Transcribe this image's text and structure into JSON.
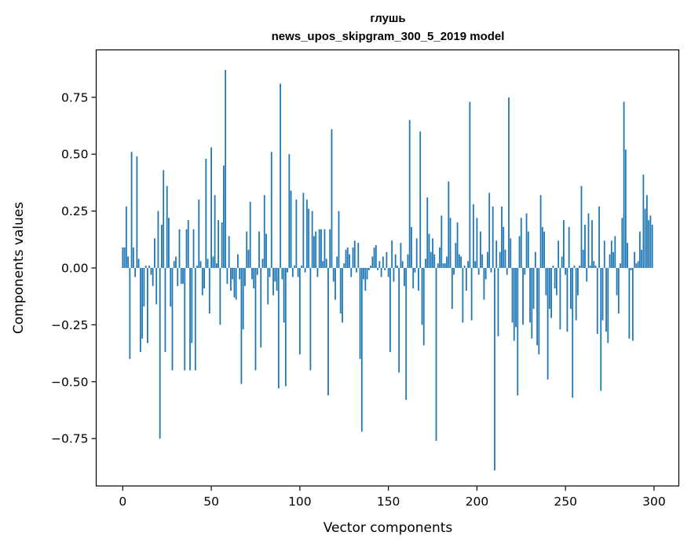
{
  "chart_data": {
    "type": "bar",
    "title": "глушь",
    "subtitle": "news_upos_skipgram_300_5_2019 model",
    "xlabel": "Vector components",
    "ylabel": "Components values",
    "xlim": [
      -15,
      314
    ],
    "ylim": [
      -0.9583,
      0.9583
    ],
    "xticks": [
      0,
      50,
      100,
      150,
      200,
      250,
      300
    ],
    "xtick_labels": [
      "0",
      "50",
      "100",
      "150",
      "200",
      "250",
      "300"
    ],
    "yticks": [
      -0.75,
      -0.5,
      -0.25,
      0.0,
      0.25,
      0.5,
      0.75
    ],
    "ytick_labels": [
      "−0.75",
      "−0.50",
      "−0.25",
      "0.00",
      "0.25",
      "0.50",
      "0.75"
    ],
    "grid": false,
    "bar_color": "#1f77b4",
    "values": [
      0.09,
      0.09,
      0.27,
      0.05,
      -0.4,
      0.51,
      0.09,
      -0.04,
      0.49,
      0.04,
      -0.37,
      -0.31,
      -0.17,
      0.01,
      -0.33,
      0.01,
      -0.03,
      -0.08,
      0.13,
      -0.16,
      0.25,
      -0.75,
      0.19,
      0.43,
      -0.37,
      0.36,
      0.22,
      -0.17,
      -0.45,
      0.03,
      0.05,
      -0.08,
      0.17,
      -0.07,
      -0.07,
      -0.45,
      0.17,
      0.21,
      -0.45,
      -0.33,
      0.17,
      -0.45,
      0.01,
      0.3,
      0.03,
      -0.12,
      -0.09,
      0.48,
      0.04,
      -0.2,
      0.53,
      0.05,
      0.32,
      0.02,
      0.21,
      -0.25,
      0.2,
      0.45,
      0.87,
      -0.07,
      0.14,
      -0.1,
      -0.05,
      -0.13,
      -0.14,
      0.06,
      -0.05,
      -0.51,
      -0.27,
      -0.08,
      0.16,
      0.08,
      0.29,
      -0.05,
      -0.09,
      -0.45,
      -0.03,
      0.16,
      -0.35,
      0.04,
      0.32,
      0.15,
      -0.16,
      -0.04,
      0.51,
      -0.12,
      -0.06,
      -0.1,
      -0.53,
      0.81,
      -0.05,
      -0.24,
      -0.52,
      -0.02,
      0.5,
      0.34,
      -0.04,
      0.01,
      0.3,
      -0.04,
      -0.38,
      0.01,
      0.33,
      -0.02,
      0.3,
      0.26,
      -0.45,
      0.25,
      0.14,
      0.16,
      -0.04,
      0.17,
      0.17,
      0.03,
      0.17,
      0.04,
      -0.56,
      0.17,
      0.61,
      -0.06,
      -0.14,
      0.05,
      0.25,
      -0.2,
      -0.24,
      0.02,
      0.08,
      0.09,
      0.06,
      -0.04,
      0.09,
      0.12,
      -0.02,
      0.11,
      -0.4,
      -0.72,
      -0.05,
      -0.1,
      -0.05,
      -0.01,
      0.01,
      0.05,
      0.09,
      0.1,
      -0.01,
      0.03,
      -0.04,
      0.05,
      -0.01,
      0.07,
      -0.04,
      -0.37,
      0.12,
      -0.06,
      0.06,
      0.01,
      -0.46,
      0.11,
      0.03,
      -0.08,
      -0.58,
      0.06,
      0.65,
      0.18,
      -0.09,
      -0.02,
      0.13,
      -0.1,
      0.6,
      -0.25,
      -0.34,
      0.04,
      0.31,
      0.15,
      0.07,
      0.13,
      0.06,
      -0.76,
      0.02,
      0.09,
      0.23,
      0.02,
      0.02,
      0.05,
      0.38,
      0.22,
      -0.18,
      -0.03,
      0.11,
      0.2,
      0.06,
      0.05,
      -0.24,
      0.01,
      -0.1,
      0.03,
      0.73,
      -0.23,
      0.28,
      0.03,
      0.22,
      -0.03,
      0.16,
      0.06,
      -0.14,
      -0.05,
      0.07,
      0.33,
      -0.02,
      0.27,
      -0.89,
      0.12,
      -0.3,
      0.07,
      0.27,
      0.18,
      0.08,
      -0.03,
      0.75,
      0.13,
      -0.24,
      -0.32,
      -0.26,
      -0.56,
      0.14,
      0.22,
      -0.25,
      -0.03,
      0.24,
      0.16,
      -0.24,
      -0.31,
      -0.18,
      0.07,
      -0.34,
      -0.38,
      0.32,
      0.18,
      0.16,
      -0.12,
      -0.49,
      -0.18,
      -0.22,
      0.01,
      -0.09,
      -0.12,
      0.12,
      -0.27,
      0.05,
      0.21,
      -0.03,
      -0.28,
      0.18,
      -0.18,
      -0.57,
      0.01,
      -0.23,
      -0.12,
      0.01,
      0.36,
      0.08,
      0.19,
      -0.06,
      0.24,
      0.01,
      0.21,
      0.03,
      0.01,
      -0.29,
      0.27,
      -0.54,
      -0.23,
      0.12,
      -0.28,
      -0.33,
      0.06,
      0.12,
      0.07,
      0.14,
      -0.12,
      -0.2,
      0.02,
      0.22,
      0.73,
      0.52,
      0.11,
      -0.31,
      -0.01,
      -0.32,
      0.07,
      0.02,
      0.03,
      0.16,
      0.08,
      0.41,
      0.26,
      0.32,
      0.21,
      0.23,
      0.19
    ]
  }
}
